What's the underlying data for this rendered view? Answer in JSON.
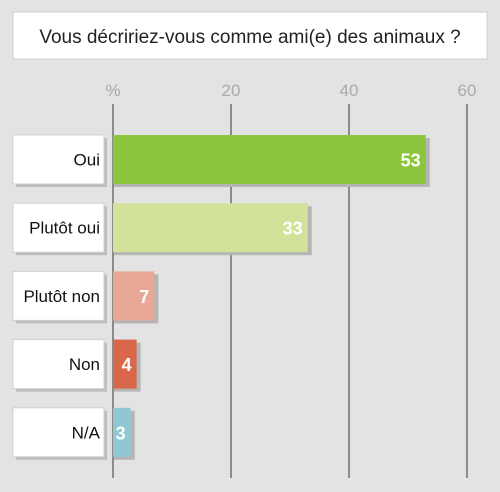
{
  "chart_data": {
    "type": "bar",
    "orientation": "horizontal",
    "title": "Vous décririez-vous comme ami(e) des animaux ?",
    "axis_unit_label": "%",
    "xlim": [
      0,
      60
    ],
    "ticks": [
      20,
      40,
      60
    ],
    "grid": true,
    "legend": "none",
    "categories": [
      "Oui",
      "Plutôt oui",
      "Plutôt non",
      "Non",
      "N/A"
    ],
    "values": [
      53,
      33,
      7,
      4,
      3
    ],
    "colors": [
      "#8cc63f",
      "#d2e29a",
      "#e8a895",
      "#d9674a",
      "#8fc7d2"
    ]
  }
}
